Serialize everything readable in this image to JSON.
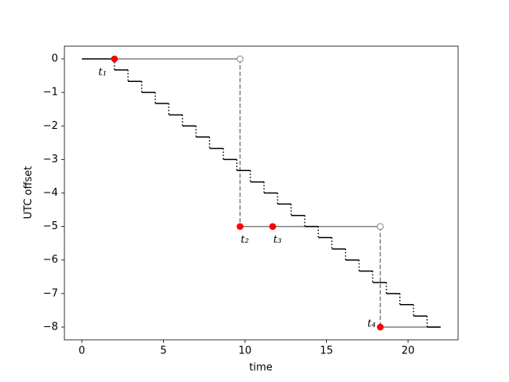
{
  "chart_data": {
    "type": "step",
    "x_label": "time",
    "y_label": "UTC offset",
    "xlim": [
      -1.07,
      23.07
    ],
    "ylim": [
      -8.38,
      0.38
    ],
    "xticks": [
      0,
      5,
      10,
      15,
      20
    ],
    "yticks": [
      0,
      {
        "value": -1,
        "label": "−1"
      },
      {
        "value": -2,
        "label": "−2"
      },
      {
        "value": -3,
        "label": "−3"
      },
      {
        "value": -4,
        "label": "−4"
      },
      {
        "value": -5,
        "label": "−5"
      },
      {
        "value": -6,
        "label": "−6"
      },
      {
        "value": -7,
        "label": "−7"
      },
      {
        "value": -8,
        "label": "−8"
      }
    ],
    "steps": {
      "color": "#000000",
      "x": [
        0,
        2,
        2.83,
        3.67,
        4.5,
        5.33,
        6.17,
        7,
        7.83,
        8.67,
        9.5,
        10.33,
        11.17,
        12,
        12.83,
        13.67,
        14.5,
        15.33,
        16.17,
        17,
        17.83,
        18.67,
        19.5,
        20.33,
        21.17,
        22
      ],
      "values": [
        0,
        -0.33,
        -0.67,
        -1,
        -1.33,
        -1.67,
        -2,
        -2.33,
        -2.67,
        -3,
        -3.33,
        -3.67,
        -4,
        -4.33,
        -4.67,
        -5,
        -5.33,
        -5.67,
        -6,
        -6.33,
        -6.67,
        -7,
        -7.33,
        -7.67,
        -8
      ]
    },
    "reference": {
      "color": "#808080",
      "x": [
        2,
        9.7,
        9.7,
        18.3,
        18.3,
        22
      ],
      "values": [
        0,
        0,
        -5,
        -5,
        -8,
        -8
      ]
    },
    "open_points": {
      "color": "#808080",
      "x": [
        9.7,
        18.3
      ],
      "values": [
        0,
        -5
      ]
    },
    "points": {
      "color": "#ff0000",
      "x": [
        2,
        9.7,
        11.7,
        18.3
      ],
      "values": [
        0,
        -5,
        -5,
        -8
      ],
      "labels": [
        "t₁",
        "t₂",
        "t₃",
        "t₄"
      ]
    }
  }
}
